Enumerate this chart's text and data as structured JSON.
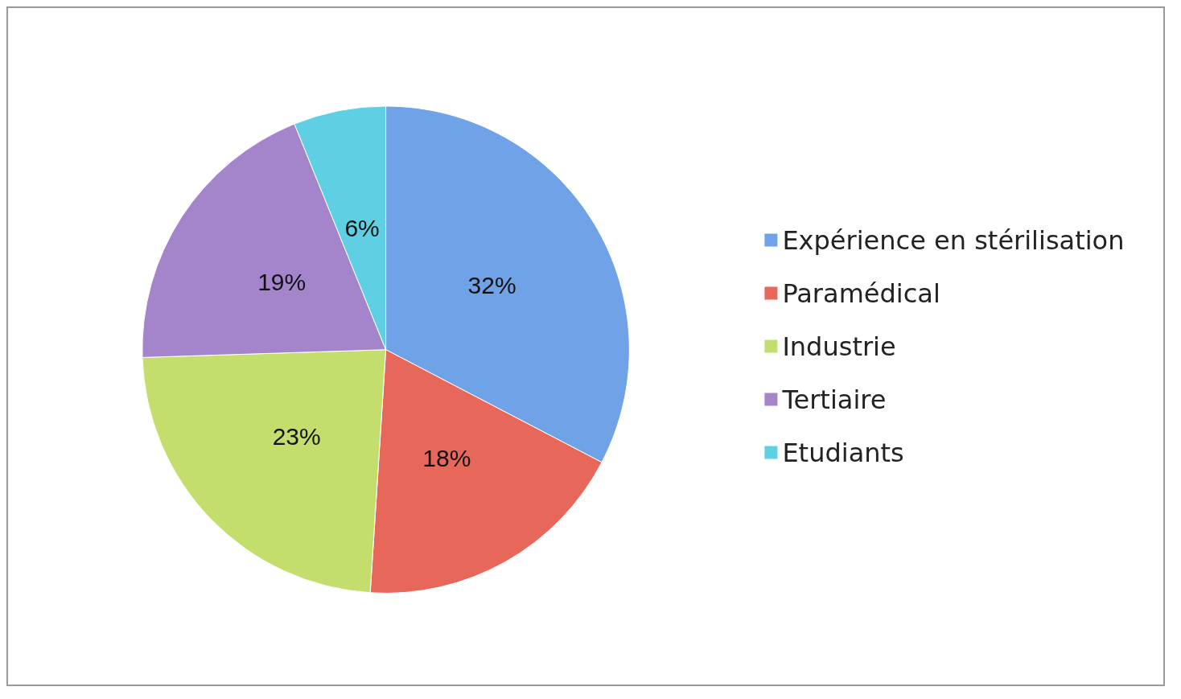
{
  "chart_data": {
    "type": "pie",
    "categories": [
      "Expérience en stérilisation",
      "Paramédical",
      "Industrie",
      "Tertiaire",
      "Etudiants"
    ],
    "values": [
      32,
      18,
      23,
      19,
      6
    ],
    "value_labels": [
      "32%",
      "18%",
      "23%",
      "19%",
      "6%"
    ],
    "colors": [
      "#6fa2e6",
      "#e8675b",
      "#c4de6e",
      "#a485cc",
      "#5fcfe4"
    ],
    "legend": "right"
  }
}
